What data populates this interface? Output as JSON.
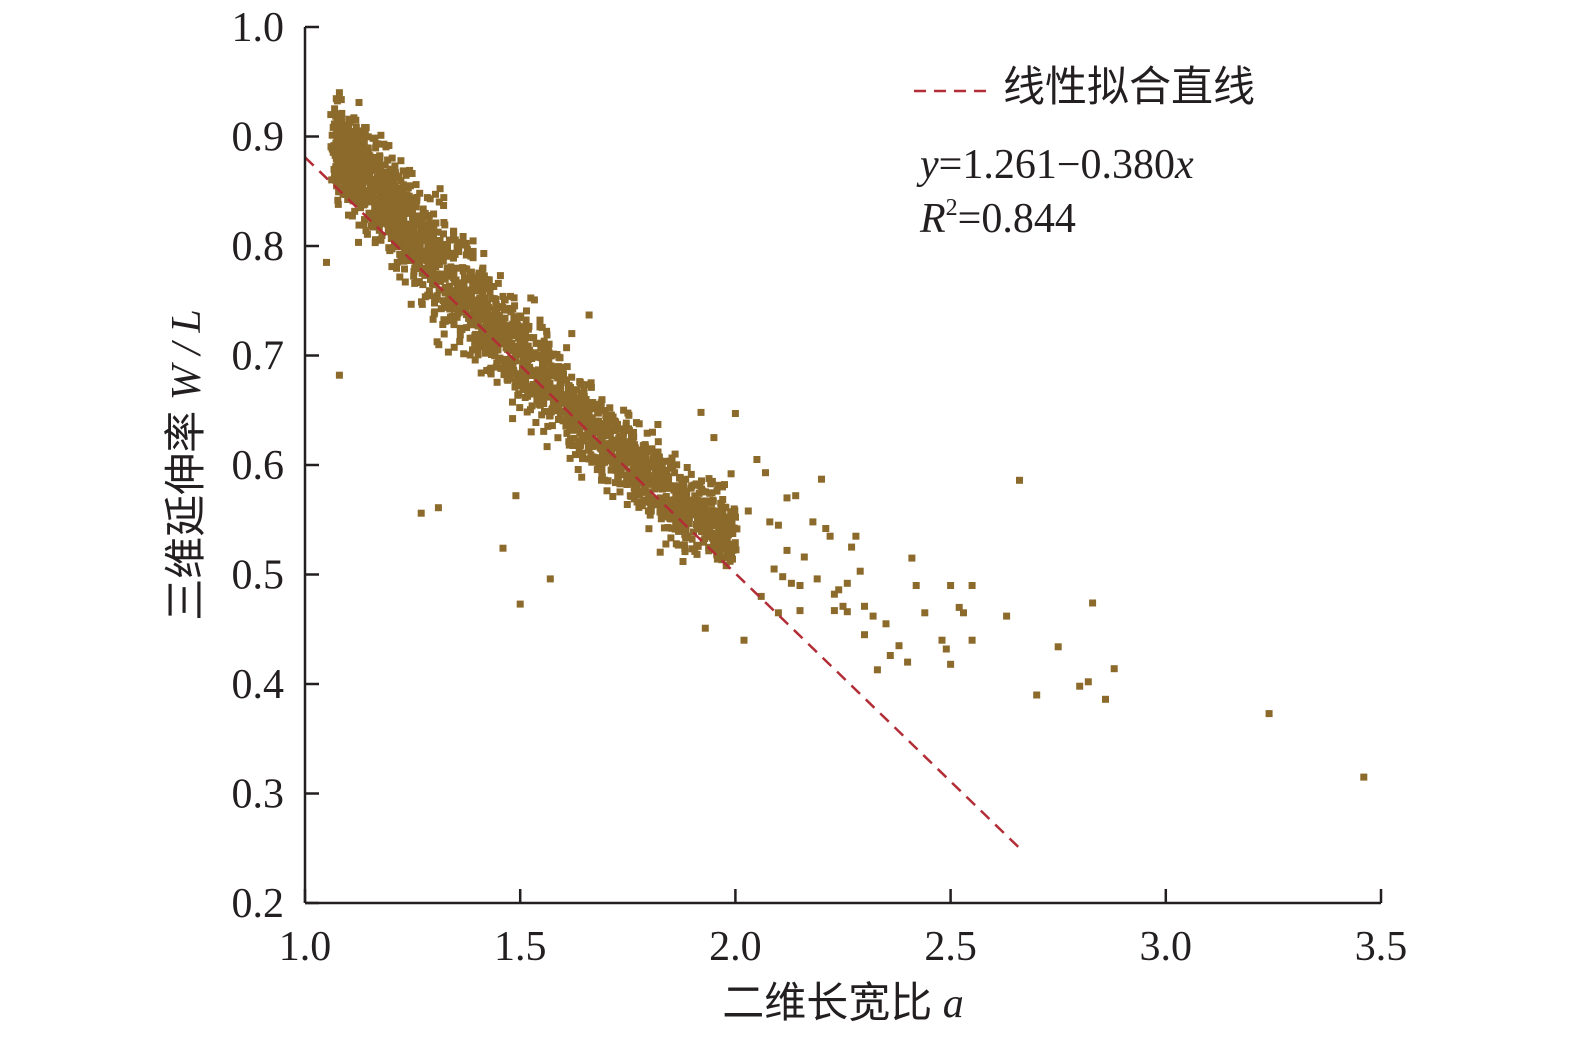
{
  "chart_data": {
    "type": "scatter",
    "title": "",
    "xlabel": "二维长宽比",
    "xlabel_var": "a",
    "ylabel": "三维延伸率",
    "ylabel_var": "W / L",
    "xlim": [
      1.0,
      3.5
    ],
    "ylim": [
      0.2,
      1.0
    ],
    "xticks": [
      "1.0",
      "1.5",
      "2.0",
      "2.5",
      "3.0",
      "3.5"
    ],
    "yticks": [
      "0.2",
      "0.3",
      "0.4",
      "0.5",
      "0.6",
      "0.7",
      "0.8",
      "0.9",
      "1.0"
    ],
    "grid": false,
    "legend": {
      "position": "top-right",
      "label": "线性拟合直线"
    },
    "annotation": {
      "eq_y": "y",
      "eq_body": "=1.261−0.380",
      "eq_x": "x",
      "r2_label": "R",
      "r2_sup": "2",
      "r2_value": "=0.844"
    },
    "colors": {
      "points": "#8b6a2b",
      "fit_line": "#b22d35",
      "axis": "#231f20"
    },
    "fit": {
      "intercept": 1.261,
      "slope": -0.38,
      "x_range": [
        1.0,
        2.66
      ]
    },
    "main_cluster": {
      "description": "dense band of several thousand points",
      "path": [
        [
          1.07,
          0.89
        ],
        [
          1.15,
          0.86
        ],
        [
          1.3,
          0.79
        ],
        [
          1.5,
          0.7
        ],
        [
          1.7,
          0.62
        ],
        [
          1.85,
          0.57
        ],
        [
          2.0,
          0.535
        ]
      ],
      "halfwidth": [
        0.035,
        0.04,
        0.045,
        0.04,
        0.035,
        0.035,
        0.03
      ]
    },
    "series": [
      {
        "values": [
          [
            1.08,
            0.94
          ],
          [
            1.06,
            0.92
          ],
          [
            1.05,
            0.785
          ],
          [
            1.08,
            0.682
          ],
          [
            1.27,
            0.556
          ],
          [
            1.31,
            0.561
          ],
          [
            1.49,
            0.572
          ],
          [
            1.46,
            0.524
          ],
          [
            1.5,
            0.473
          ],
          [
            1.57,
            0.496
          ],
          [
            1.66,
            0.737
          ],
          [
            1.62,
            0.72
          ],
          [
            1.82,
            0.637
          ],
          [
            1.86,
            0.61
          ],
          [
            1.92,
            0.648
          ],
          [
            1.95,
            0.625
          ],
          [
            2.0,
            0.647
          ],
          [
            1.97,
            0.58
          ],
          [
            1.99,
            0.592
          ],
          [
            2.05,
            0.605
          ],
          [
            2.07,
            0.593
          ],
          [
            2.03,
            0.558
          ],
          [
            2.08,
            0.548
          ],
          [
            2.1,
            0.545
          ],
          [
            2.12,
            0.57
          ],
          [
            2.14,
            0.572
          ],
          [
            2.2,
            0.587
          ],
          [
            2.18,
            0.548
          ],
          [
            2.21,
            0.542
          ],
          [
            2.12,
            0.522
          ],
          [
            2.16,
            0.516
          ],
          [
            2.22,
            0.535
          ],
          [
            2.27,
            0.525
          ],
          [
            2.28,
            0.535
          ],
          [
            2.09,
            0.505
          ],
          [
            2.11,
            0.498
          ],
          [
            2.13,
            0.492
          ],
          [
            2.15,
            0.49
          ],
          [
            2.19,
            0.496
          ],
          [
            2.24,
            0.486
          ],
          [
            2.26,
            0.492
          ],
          [
            2.29,
            0.503
          ],
          [
            2.06,
            0.48
          ],
          [
            2.1,
            0.465
          ],
          [
            2.15,
            0.467
          ],
          [
            2.23,
            0.482
          ],
          [
            2.25,
            0.471
          ],
          [
            2.3,
            0.471
          ],
          [
            2.32,
            0.462
          ],
          [
            2.35,
            0.455
          ],
          [
            2.3,
            0.445
          ],
          [
            2.26,
            0.466
          ],
          [
            2.38,
            0.435
          ],
          [
            2.36,
            0.426
          ],
          [
            2.41,
            0.515
          ],
          [
            2.42,
            0.49
          ],
          [
            2.44,
            0.465
          ],
          [
            2.4,
            0.42
          ],
          [
            2.5,
            0.49
          ],
          [
            2.52,
            0.47
          ],
          [
            2.55,
            0.49
          ],
          [
            2.53,
            0.465
          ],
          [
            2.55,
            0.44
          ],
          [
            2.48,
            0.44
          ],
          [
            2.49,
            0.432
          ],
          [
            2.5,
            0.418
          ],
          [
            2.63,
            0.462
          ],
          [
            2.66,
            0.586
          ],
          [
            2.7,
            0.39
          ],
          [
            2.75,
            0.434
          ],
          [
            2.8,
            0.398
          ],
          [
            2.82,
            0.402
          ],
          [
            2.83,
            0.474
          ],
          [
            2.86,
            0.386
          ],
          [
            2.88,
            0.414
          ],
          [
            3.24,
            0.373
          ],
          [
            3.46,
            0.315
          ],
          [
            1.93,
            0.451
          ],
          [
            2.02,
            0.44
          ],
          [
            2.23,
            0.467
          ],
          [
            2.33,
            0.413
          ]
        ]
      }
    ]
  }
}
